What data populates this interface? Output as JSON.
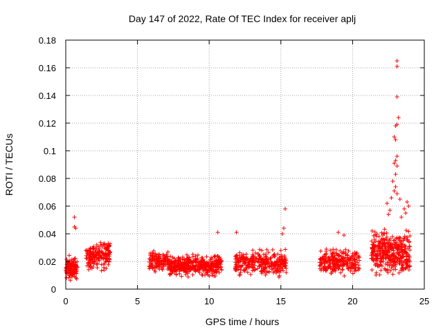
{
  "chart_data": {
    "type": "scatter",
    "title": "Day 147 of 2022, Rate Of TEC Index for receiver aplj",
    "xlabel": "GPS time / hours",
    "ylabel": "ROTI / TECUs",
    "xlim": [
      0,
      25
    ],
    "ylim": [
      0,
      0.18
    ],
    "xticks": [
      0,
      5,
      10,
      15,
      20,
      25
    ],
    "yticks": [
      0,
      0.02,
      0.04,
      0.06,
      0.08,
      0.1,
      0.12,
      0.14,
      0.16,
      0.18
    ],
    "xtick_labels": [
      "0",
      "5",
      "10",
      "15",
      "20",
      "25"
    ],
    "ytick_labels": [
      "0",
      "0.02",
      "0.04",
      "0.06",
      "0.08",
      "0.1",
      "0.12",
      "0.14",
      "0.16",
      "0.18"
    ],
    "grid": true,
    "marker": "+",
    "color": "#ff0000",
    "clusters": [
      {
        "x": [
          0.0,
          0.8
        ],
        "y_center": 0.015,
        "y_spread": 0.01,
        "count": 120
      },
      {
        "x": [
          1.4,
          3.1
        ],
        "y_center": 0.024,
        "y_spread": 0.013,
        "count": 180
      },
      {
        "x": [
          5.8,
          7.2
        ],
        "y_center": 0.02,
        "y_spread": 0.01,
        "count": 120
      },
      {
        "x": [
          7.2,
          10.9
        ],
        "y_center": 0.017,
        "y_spread": 0.01,
        "count": 420
      },
      {
        "x": [
          11.8,
          15.4
        ],
        "y_center": 0.019,
        "y_spread": 0.012,
        "count": 320
      },
      {
        "x": [
          17.7,
          20.5
        ],
        "y_center": 0.02,
        "y_spread": 0.012,
        "count": 240
      },
      {
        "x": [
          21.3,
          24.0
        ],
        "y_center": 0.026,
        "y_spread": 0.02,
        "count": 380
      }
    ],
    "points": [
      {
        "x": 0.6,
        "y": 0.052
      },
      {
        "x": 0.6,
        "y": 0.045
      },
      {
        "x": 0.7,
        "y": 0.044
      },
      {
        "x": 10.6,
        "y": 0.041
      },
      {
        "x": 11.9,
        "y": 0.041
      },
      {
        "x": 15.3,
        "y": 0.058
      },
      {
        "x": 15.2,
        "y": 0.044
      },
      {
        "x": 15.1,
        "y": 0.04
      },
      {
        "x": 19.0,
        "y": 0.041
      },
      {
        "x": 19.4,
        "y": 0.039
      },
      {
        "x": 23.1,
        "y": 0.165
      },
      {
        "x": 23.1,
        "y": 0.161
      },
      {
        "x": 23.1,
        "y": 0.139
      },
      {
        "x": 23.2,
        "y": 0.124
      },
      {
        "x": 23.1,
        "y": 0.119
      },
      {
        "x": 23.0,
        "y": 0.118
      },
      {
        "x": 22.9,
        "y": 0.11
      },
      {
        "x": 23.0,
        "y": 0.108
      },
      {
        "x": 23.1,
        "y": 0.096
      },
      {
        "x": 23.0,
        "y": 0.093
      },
      {
        "x": 22.9,
        "y": 0.091
      },
      {
        "x": 23.1,
        "y": 0.089
      },
      {
        "x": 23.0,
        "y": 0.083
      },
      {
        "x": 22.8,
        "y": 0.078
      },
      {
        "x": 23.0,
        "y": 0.074
      },
      {
        "x": 22.9,
        "y": 0.071
      },
      {
        "x": 23.1,
        "y": 0.069
      },
      {
        "x": 22.7,
        "y": 0.066
      },
      {
        "x": 23.3,
        "y": 0.065
      },
      {
        "x": 23.8,
        "y": 0.063
      },
      {
        "x": 22.4,
        "y": 0.062
      },
      {
        "x": 23.9,
        "y": 0.06
      },
      {
        "x": 23.6,
        "y": 0.058
      },
      {
        "x": 22.6,
        "y": 0.057
      },
      {
        "x": 23.7,
        "y": 0.055
      },
      {
        "x": 22.5,
        "y": 0.054
      },
      {
        "x": 23.4,
        "y": 0.052
      }
    ]
  }
}
